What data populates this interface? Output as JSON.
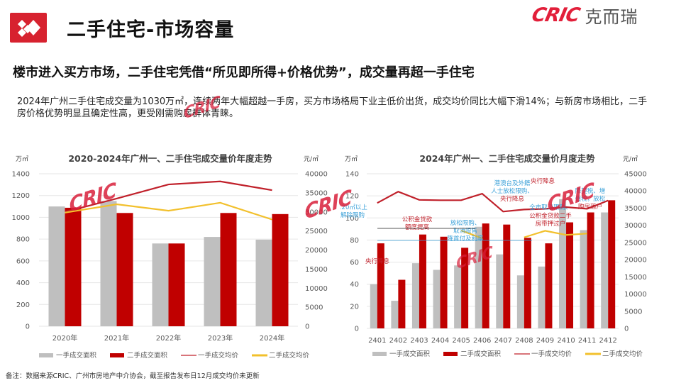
{
  "header": {
    "title": "二手住宅-市场容量",
    "brand_en": "CRIC",
    "brand_cn": "克而瑞",
    "logo_icon": "diamond-grid-logo-icon"
  },
  "subtitle": "楼市进入买方市场，二手住宅凭借“所见即所得+价格优势”，成交量再超一手住宅",
  "description": "2024年广州二手住宅成交量为1030万㎡，连续两年大幅超越一手房，买方市场格局下业主低价出货，成交均价同比大幅下滑14%；与新房市场相比，二手房价格优势明显且确定性高，更受刚需购房群体青睐。",
  "footnote": "备注：数据来源CRIC、广州市房地产中介协会，截至报告发布日12月成交均价未更新",
  "watermark": "CRIC",
  "colors": {
    "accent_red": "#d7222f",
    "bar_grey": "#bfbfbf",
    "bar_red": "#c00000",
    "line_red": "#c0202a",
    "line_yellow": "#f2c02c",
    "annotation_blue": "#3aa0d8",
    "annotation_red": "#c0202a"
  },
  "chart_data": [
    {
      "type": "bar",
      "title": "2020-2024年广州一、二手住宅成交量价年度走势",
      "ylabel": "万㎡",
      "y2label": "元/㎡",
      "ylim": [
        0,
        1400
      ],
      "y2lim": [
        0,
        40000
      ],
      "yticks": [
        "0",
        "200",
        "400",
        "600",
        "800",
        "1000",
        "1200",
        "1400"
      ],
      "y2ticks": [
        "0",
        "5000",
        "10000",
        "15000",
        "20000",
        "25000",
        "30000",
        "35000",
        "40000"
      ],
      "categories": [
        "2020年",
        "2021年",
        "2022年",
        "2023年",
        "2024年"
      ],
      "series": [
        {
          "name": "一手成交面积",
          "type": "bar",
          "axis": "left",
          "values": [
            1100,
            1150,
            760,
            820,
            795
          ]
        },
        {
          "name": "二手成交面积",
          "type": "bar",
          "axis": "left",
          "values": [
            1088,
            1040,
            760,
            1040,
            1030
          ]
        },
        {
          "name": "一手成交均价",
          "type": "line",
          "axis": "right",
          "values": [
            30000,
            33500,
            37200,
            38000,
            35700
          ]
        },
        {
          "name": "二手成交均价",
          "type": "line",
          "axis": "right",
          "values": [
            29800,
            32000,
            30300,
            32400,
            28000
          ]
        }
      ],
      "legend": [
        "一手成交面积",
        "二手成交面积",
        "一手成交均价",
        "二手成交均价"
      ],
      "legend_position": "bottom",
      "grid": true
    },
    {
      "type": "bar",
      "title": "2024年广州一、二手住宅成交量价月度走势",
      "ylabel": "万㎡",
      "y2label": "元/㎡",
      "ylim": [
        0,
        140
      ],
      "y2lim": [
        0,
        45000
      ],
      "yticks": [
        "0",
        "20",
        "40",
        "60",
        "80",
        "100",
        "120",
        "140"
      ],
      "y2ticks": [
        "0",
        "5000",
        "10000",
        "15000",
        "20000",
        "25000",
        "30000",
        "35000",
        "40000",
        "45000"
      ],
      "categories": [
        "2401",
        "2402",
        "2403",
        "2404",
        "2405",
        "2406",
        "2407",
        "2408",
        "2409",
        "2410",
        "2411",
        "2412"
      ],
      "series": [
        {
          "name": "一手成交面积",
          "type": "bar",
          "axis": "left",
          "values": [
            40,
            25,
            59,
            53,
            57,
            92,
            67,
            48,
            56,
            117,
            89,
            105
          ]
        },
        {
          "name": "二手成交面积",
          "type": "bar",
          "axis": "left",
          "values": [
            77,
            44,
            85,
            83,
            73,
            95,
            94,
            82,
            77,
            96,
            105,
            116
          ]
        },
        {
          "name": "一手成交均价",
          "type": "line",
          "axis": "right",
          "values": [
            36500,
            39800,
            37400,
            37300,
            37300,
            39200,
            34000,
            34600,
            34800,
            35300,
            34800,
            37200
          ]
        },
        {
          "name": "二手成交均价",
          "type": "line",
          "axis": "right",
          "values": [
            null,
            null,
            null,
            null,
            28500,
            26200,
            null,
            26500,
            28400,
            27200,
            27600,
            null
          ]
        }
      ],
      "annotations": [
        {
          "text": "120㎡以上\n解除限购",
          "month": "2401",
          "color": "blue"
        },
        {
          "text": "央行降息",
          "month": "2402",
          "color": "red"
        },
        {
          "text": "公积金贷款\n额度提高",
          "month": "2404",
          "color": "red"
        },
        {
          "text": "放松限购、\n取消限售\n降首付及利率",
          "month": "2405",
          "color": "blue"
        },
        {
          "text": "港澳台及外籍\n人士放松限购、",
          "month": "2407",
          "color": "blue"
        },
        {
          "text": "央行降息",
          "month": "2407",
          "color": "red"
        },
        {
          "text": "全市取消限购、",
          "month": "2409",
          "color": "blue"
        },
        {
          "text": "公积金贷款二手\n房带押过户",
          "month": "2409",
          "color": "red"
        },
        {
          "text": "央行降息",
          "month": "2410",
          "color": "red"
        },
        {
          "text": "降契税、增\n值税，放松",
          "month": "2411",
          "color": "blue"
        },
        {
          "text": "购房落户",
          "month": "2411",
          "color": "red"
        }
      ],
      "legend": [
        "一手成交面积",
        "二手成交面积",
        "一手成交均价",
        "二手成交均价"
      ],
      "legend_position": "bottom",
      "grid": true
    }
  ]
}
